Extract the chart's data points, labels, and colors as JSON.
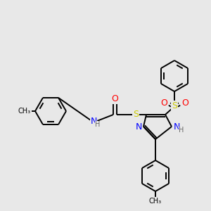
{
  "background_color": "#e8e8e8",
  "bond_color": "#000000",
  "atom_colors": {
    "N": "#0000ff",
    "O": "#ff0000",
    "S": "#cccc00",
    "H": "#666666",
    "C": "#000000"
  },
  "font_size": 8,
  "figsize": [
    3.0,
    3.0
  ],
  "dpi": 100
}
